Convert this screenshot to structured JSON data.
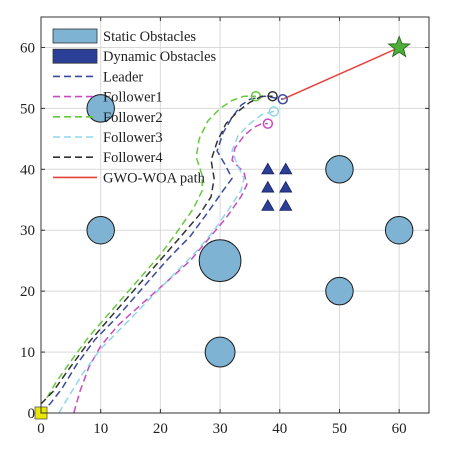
{
  "chart_data": {
    "type": "scatter",
    "title": "",
    "xlabel": "",
    "ylabel": "",
    "xlim": [
      0,
      65
    ],
    "ylim": [
      0,
      65
    ],
    "xticks": [
      0,
      10,
      20,
      30,
      40,
      50,
      60
    ],
    "yticks": [
      0,
      10,
      20,
      30,
      40,
      50,
      60
    ],
    "grid": true,
    "legend_position": "top-left",
    "legend": [
      {
        "label": "Static Obstacles",
        "kind": "patch",
        "color": "#7fb3d3"
      },
      {
        "label": "Dynamic Obstacles",
        "kind": "patch",
        "color": "#2b3f96"
      },
      {
        "label": "Leader",
        "kind": "dashed",
        "color": "#3b4a9c"
      },
      {
        "label": "Follower1",
        "kind": "dashed",
        "color": "#c94bbf"
      },
      {
        "label": "Follower2",
        "kind": "dashed",
        "color": "#66c93a"
      },
      {
        "label": "Follower3",
        "kind": "dashed",
        "color": "#8fd6e8"
      },
      {
        "label": "Follower4",
        "kind": "dashed",
        "color": "#333333"
      },
      {
        "label": "GWO-WOA path",
        "kind": "solid",
        "color": "#e8413a"
      }
    ],
    "static_obstacles": [
      {
        "x": 10,
        "y": 50,
        "r": 2.3
      },
      {
        "x": 10,
        "y": 30,
        "r": 2.3
      },
      {
        "x": 30,
        "y": 25,
        "r": 3.5
      },
      {
        "x": 30,
        "y": 10,
        "r": 2.5
      },
      {
        "x": 50,
        "y": 40,
        "r": 2.3
      },
      {
        "x": 50,
        "y": 20,
        "r": 2.3
      },
      {
        "x": 60,
        "y": 30,
        "r": 2.3
      }
    ],
    "dynamic_obstacles": [
      {
        "x": 38,
        "y": 40
      },
      {
        "x": 41,
        "y": 40
      },
      {
        "x": 38,
        "y": 37
      },
      {
        "x": 41,
        "y": 37
      },
      {
        "x": 38,
        "y": 34
      },
      {
        "x": 41,
        "y": 34
      }
    ],
    "start": {
      "x": 0,
      "y": 0,
      "color": "#e8e800"
    },
    "goal": {
      "x": 60,
      "y": 60,
      "color": "#4caf3a"
    },
    "series": [
      {
        "name": "GWO-WOA path",
        "style": "solid",
        "color": "#e8413a",
        "x": [
          40.5,
          60
        ],
        "y": [
          51.5,
          60
        ]
      },
      {
        "name": "Leader",
        "style": "dashed",
        "color": "#3b4a9c",
        "x": [
          0,
          1.5,
          3.5,
          6,
          9,
          13,
          17,
          21,
          25,
          28,
          30.5,
          32,
          31,
          29.5,
          30.5,
          32,
          33.5,
          35,
          37.5,
          40.5
        ],
        "y": [
          0,
          1.5,
          4,
          8,
          12,
          16,
          20.5,
          25,
          29,
          33,
          36.5,
          38.5,
          40.5,
          43,
          46,
          48.5,
          50.5,
          51.5,
          52,
          51.5
        ]
      },
      {
        "name": "Follower1",
        "style": "dashed",
        "color": "#c94bbf",
        "x": [
          5.5,
          6.5,
          8,
          10,
          13,
          17,
          21,
          25,
          28,
          31,
          33.5,
          34.5,
          34,
          32,
          32.5,
          34,
          35.5,
          37,
          38
        ],
        "y": [
          0,
          3.5,
          7.5,
          11,
          14.5,
          18,
          21.5,
          25,
          28.5,
          32,
          35.5,
          37.5,
          39.5,
          41.5,
          43.5,
          45.5,
          46.8,
          47.5,
          47.5
        ]
      },
      {
        "name": "Follower2",
        "style": "dashed",
        "color": "#66c93a",
        "x": [
          1,
          2.5,
          5,
          8,
          12,
          16,
          20,
          23,
          25.5,
          27,
          27,
          26,
          26.5,
          28,
          30,
          32,
          34,
          36
        ],
        "y": [
          2.5,
          5,
          8.5,
          12.5,
          17,
          21.5,
          26,
          30,
          33.5,
          36.5,
          39,
          42,
          45,
          48,
          50,
          51.3,
          52,
          52
        ]
      },
      {
        "name": "Follower3",
        "style": "dashed",
        "color": "#8fd6e8",
        "x": [
          3,
          4.5,
          7,
          10,
          14,
          18,
          22,
          26,
          29,
          31.5,
          33.5,
          34,
          33,
          32,
          33,
          35,
          37,
          39
        ],
        "y": [
          0,
          2.5,
          6.5,
          10.5,
          14.5,
          18.5,
          22.5,
          26.5,
          30,
          33.5,
          36.5,
          38.5,
          40.5,
          43,
          45.5,
          47.5,
          49,
          49.5
        ]
      },
      {
        "name": "Follower4",
        "style": "dashed",
        "color": "#333333",
        "x": [
          0,
          2,
          4.5,
          7.5,
          11,
          15,
          19,
          23,
          26.5,
          28.5,
          29,
          28.5,
          29.5,
          31,
          33,
          35,
          37,
          38.8
        ],
        "y": [
          1.5,
          3.5,
          7,
          11,
          15,
          19.5,
          24,
          28.5,
          32.5,
          35.5,
          38.5,
          41.5,
          44.5,
          47.5,
          49.5,
          51,
          52,
          52
        ]
      }
    ]
  }
}
